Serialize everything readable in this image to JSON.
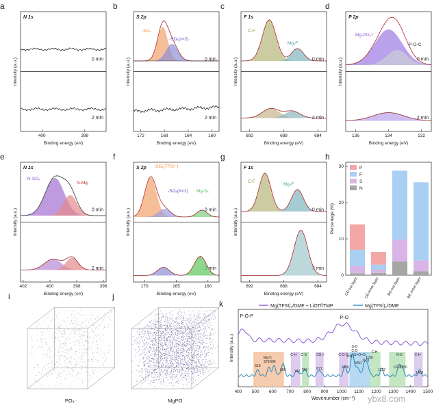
{
  "panels": {
    "a": {
      "letter": "a",
      "title": "N 1s",
      "top_label": "0 min",
      "bottom_label": "2 min",
      "ylabel": "Intensity (a.u.)",
      "xlabel": "Binding energy (eV)",
      "ticks": [
        "400",
        "398"
      ]
    },
    "b": {
      "letter": "b",
      "title": "S 2p",
      "top_label": "0 min",
      "bottom_label": "2 min",
      "ylabel": "Intensity (a.u.)",
      "xlabel": "Binding energy (eV)",
      "ticks": [
        "172",
        "168",
        "164",
        "160"
      ],
      "peak1": "-SOₓ",
      "peak2": "-SOₓ(x<2)"
    },
    "c": {
      "letter": "c",
      "title": "F 1s",
      "top_label": "0 min",
      "bottom_label": "2 min",
      "ylabel": "Intensity (a.u.)",
      "xlabel": "Binding energy (eV)",
      "ticks": [
        "692",
        "688",
        "684"
      ],
      "peak1": "C-F",
      "peak2": "Mg-F"
    },
    "d": {
      "letter": "d",
      "title": "P 2p",
      "top_label": "0 min",
      "bottom_label": "2 min",
      "ylabel": "Intensity (a.u.)",
      "xlabel": "Binding energy (eV)",
      "ticks": [
        "136",
        "134",
        "132"
      ],
      "peak1": "Mg-PO₄³⁻",
      "peak2": "P-O-C"
    },
    "e": {
      "letter": "e",
      "title": "N 1s",
      "top_label": "0 min",
      "bottom_label": "2 min",
      "ylabel": "Intensity (a.u.)",
      "xlabel": "Binding energy (eV)",
      "ticks": [
        "402",
        "400",
        "398",
        "396"
      ],
      "peak1": "N-SOₓ",
      "peak2": "N-Mg"
    },
    "f": {
      "letter": "f",
      "title": "S 2p",
      "top_label": "0 min",
      "bottom_label": "2 min",
      "ylabel": "Intensity (a.u.)",
      "xlabel": "Binding energy (eV)",
      "ticks": [
        "170",
        "165",
        "160"
      ],
      "peak1": "-SOₓ(TFSI⁻)",
      "peak2": "-SOₓ(X<2)",
      "peak3": "Mg-Sₓ"
    },
    "g": {
      "letter": "g",
      "title": "F 1s",
      "top_label": "0 min",
      "bottom_label": "2 min",
      "ylabel": "Intensity (a.u.)",
      "xlabel": "Binding energy (eV)",
      "ticks": [
        "692",
        "688",
        "684"
      ],
      "peak1": "C-F",
      "peak2": "Mg-F"
    }
  },
  "panel_h": {
    "letter": "h",
    "ylabel": "Percentage (%)",
    "yticks": [
      "0",
      "10",
      "20",
      "30"
    ],
    "legend": [
      {
        "label": "P",
        "color": "#f4a7a7"
      },
      {
        "label": "F",
        "color": "#a9cff2"
      },
      {
        "label": "S",
        "color": "#d8b5e6"
      },
      {
        "label": "N",
        "color": "#a6a6a6"
      }
    ]
  },
  "panel_i": {
    "letter": "i",
    "caption": "PO₄⁻"
  },
  "panel_j": {
    "letter": "j",
    "caption": "MgPO"
  },
  "panel_k": {
    "letter": "k",
    "legend1": "Mg(TFSI)₂/DME + LiOTf/TMP",
    "legend2": "Mg(TFSI)₂/DME",
    "peak_pop": "P-O-P",
    "peak_po": "P-O",
    "ylabel": "Intensity (a.u.)",
    "xlabel": "Wavenumber (cm⁻¹)",
    "xticks": [
      "400",
      "500",
      "600",
      "700",
      "800",
      "900",
      "1000",
      "1100",
      "1200",
      "1300",
      "1400",
      "1500"
    ],
    "band_labels": [
      "Mg-C",
      "C-H",
      "C-S",
      "CO₃²⁻",
      "C-O-C",
      "S-O\nC-O",
      "S=O=O",
      "C-H",
      "N-S",
      "C-H"
    ],
    "band_numbers": [
      "513",
      "579",
      "609",
      "659",
      "742",
      "784",
      "871",
      "1020",
      "1062",
      "1091",
      "1131",
      "1150",
      "1232",
      "1333",
      "1350",
      "1452"
    ]
  },
  "chart_data": [
    {
      "type": "bar",
      "title": "h",
      "categories": [
        "CE-out layer",
        "CE-inner layer",
        "BE-out layer",
        "BE-inner layer"
      ],
      "series": [
        {
          "name": "N",
          "values": [
            0.5,
            0.6,
            3.8,
            1.1
          ]
        },
        {
          "name": "S",
          "values": [
            2.0,
            0.9,
            6.0,
            3.0
          ]
        },
        {
          "name": "F",
          "values": [
            4.5,
            1.4,
            19.0,
            21.5
          ]
        },
        {
          "name": "P",
          "values": [
            7.0,
            3.5,
            0,
            0
          ]
        }
      ],
      "ylabel": "Percentage (%)",
      "ylim": [
        0,
        30
      ]
    },
    {
      "type": "line",
      "title": "k",
      "xlabel": "Wavenumber (cm⁻¹)",
      "ylabel": "Intensity (a.u.)",
      "xlim": [
        400,
        1500
      ],
      "series": [
        {
          "name": "Mg(TFSI)₂/DME + LiOTf/TMP"
        },
        {
          "name": "Mg(TFSI)₂/DME"
        }
      ]
    }
  ],
  "watermark": "ybx8.com",
  "colors": {
    "red": "#c1272d",
    "orange": "#f08a3c",
    "blue": "#5a4fc0",
    "green": "#55b455",
    "olive": "#8a8a3c",
    "teal": "#4c9aa6",
    "purple": "#8a5bd6"
  }
}
